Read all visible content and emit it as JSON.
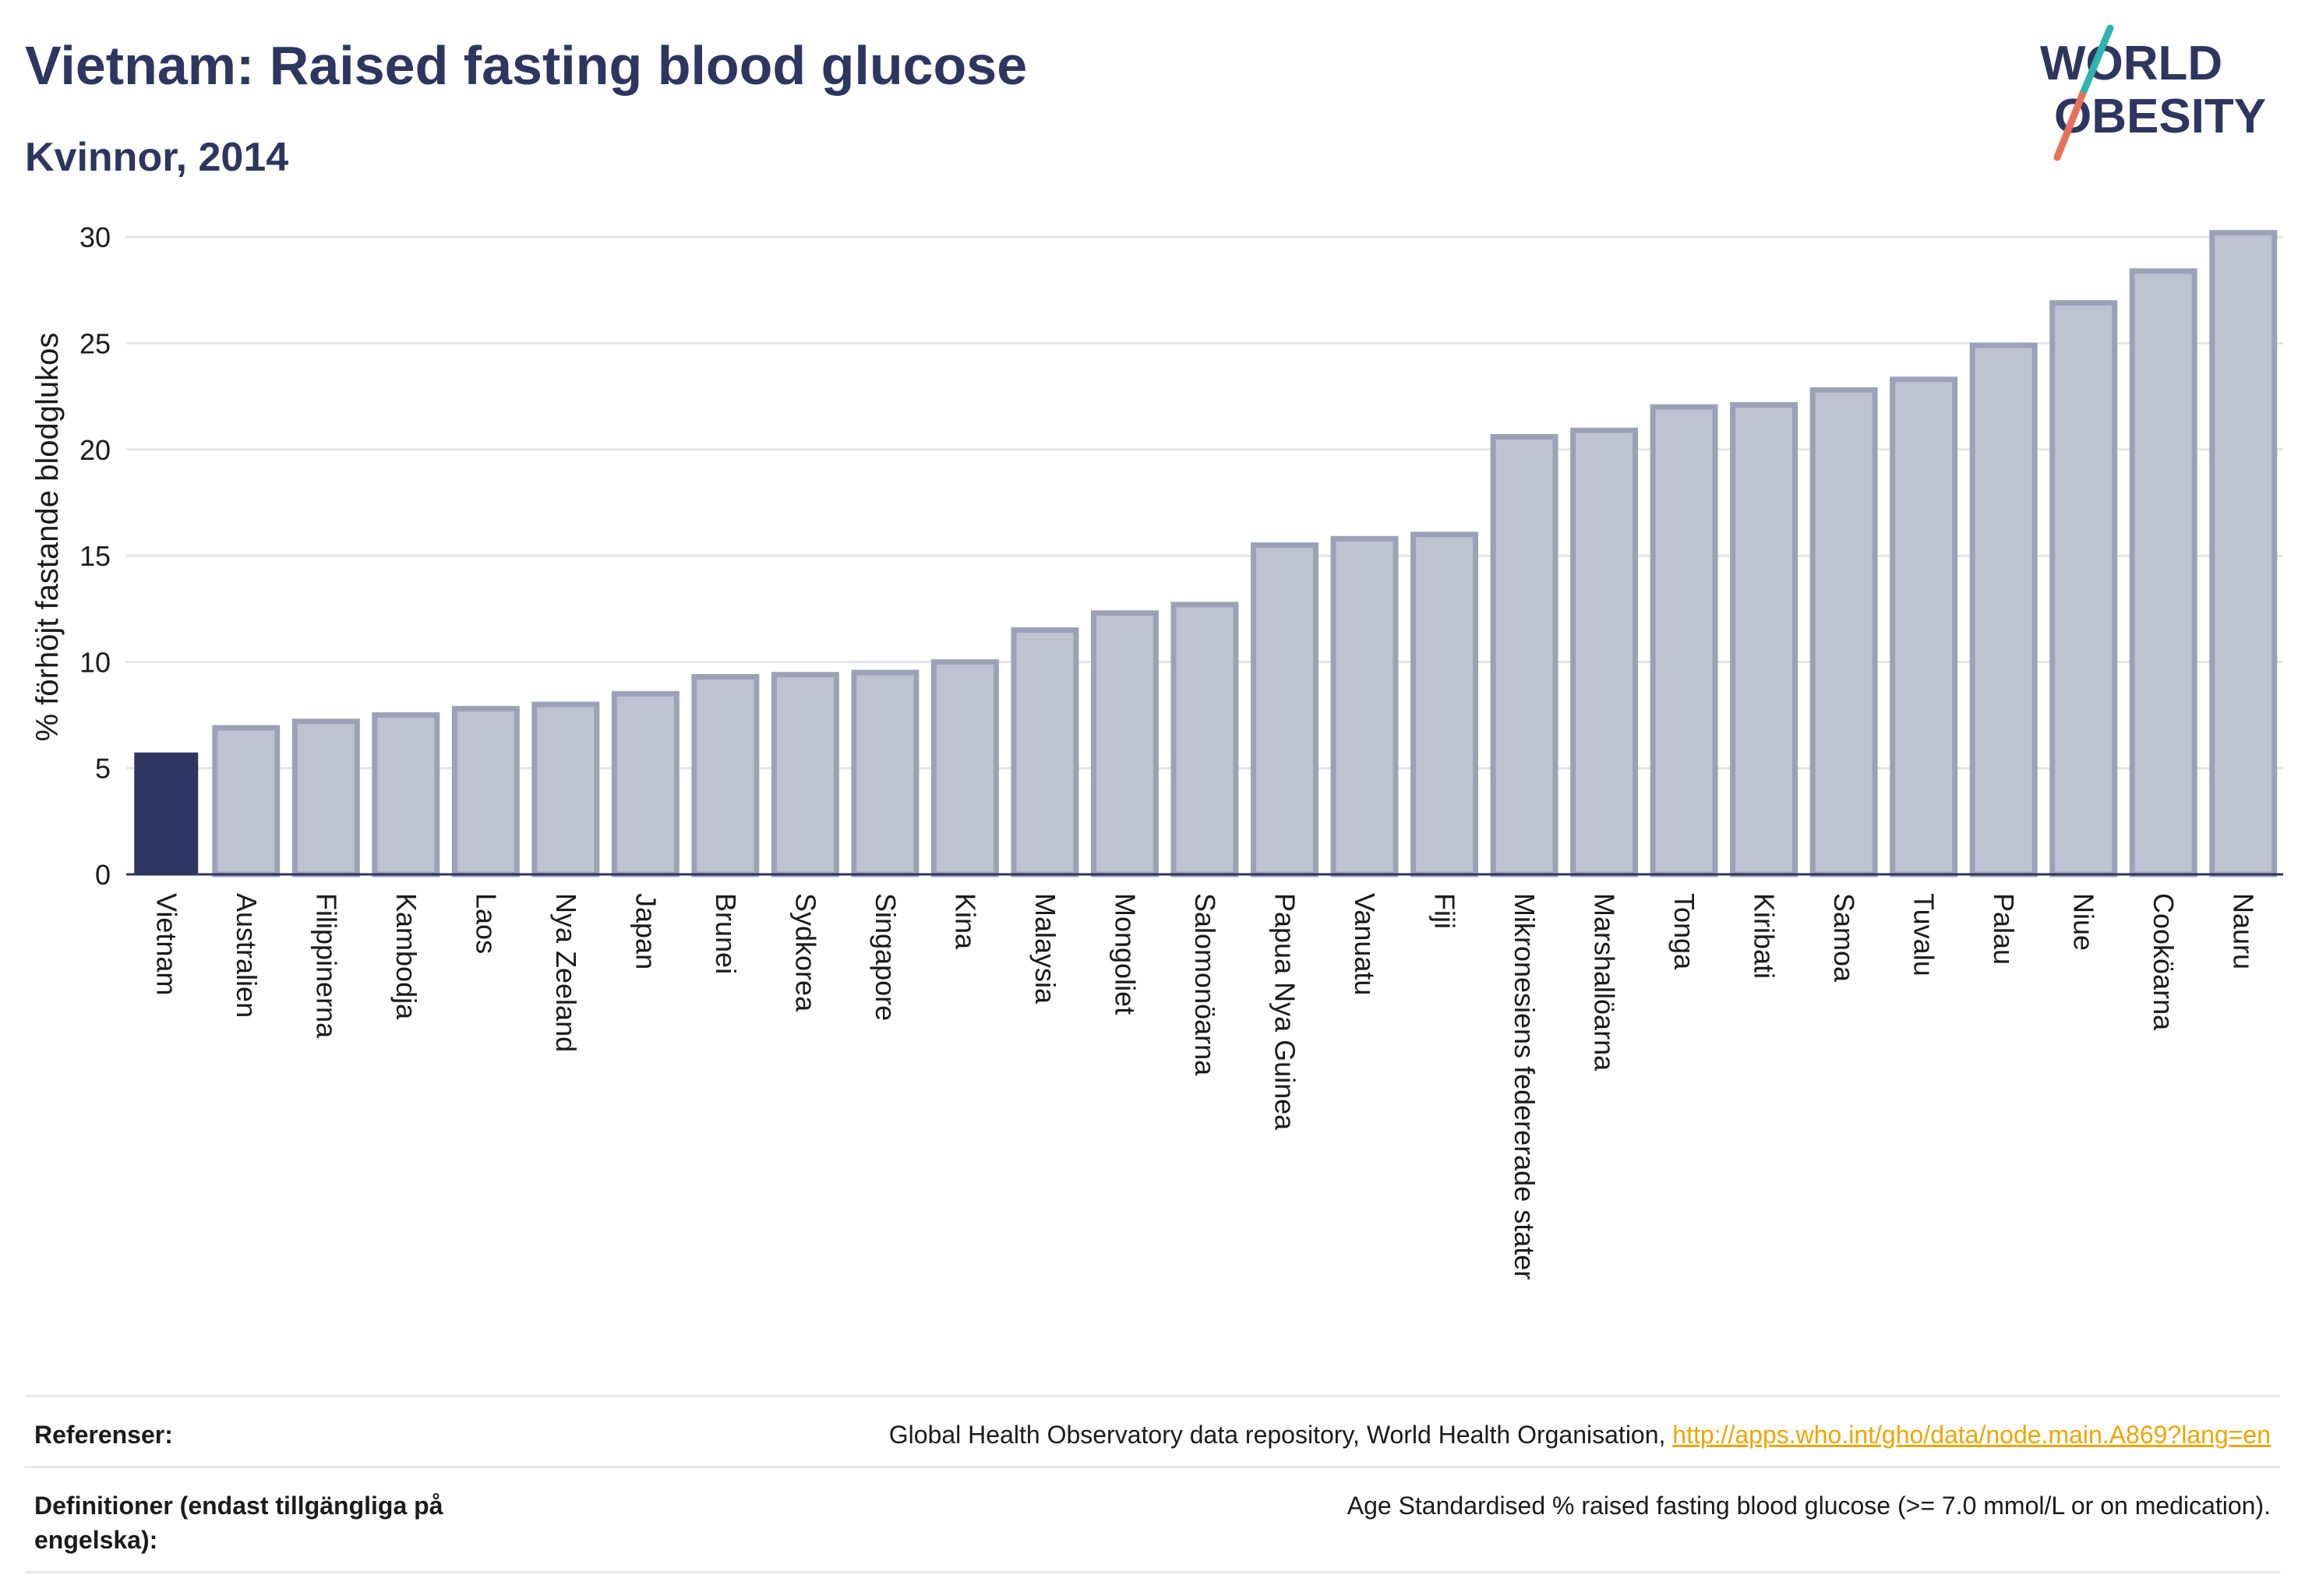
{
  "header": {
    "title": "Vietnam: Raised fasting blood glucose",
    "subtitle": "Kvinnor, 2014"
  },
  "logo": {
    "line1": "WORLD",
    "line2": "OBESITY"
  },
  "colors": {
    "highlight_bar": "#2d3660",
    "other_bar_fill": "#bfc2d0",
    "other_bar_stroke": "#9ca1b8",
    "title": "#2d3660",
    "link": "#f0a500",
    "logo_teal": "#2fb3b0",
    "logo_coral": "#e8705a"
  },
  "chart_data": {
    "type": "bar",
    "title": "",
    "xlabel": "",
    "ylabel": "% förhöjt fastande blodglukos",
    "ylim": [
      0,
      30
    ],
    "yticks": [
      0,
      5,
      10,
      15,
      20,
      25,
      30
    ],
    "grid": true,
    "highlight": "Vietnam",
    "categories": [
      "Vietnam",
      "Australien",
      "Filippinerna",
      "Kambodja",
      "Laos",
      "Nya Zeeland",
      "Japan",
      "Brunei",
      "Sydkorea",
      "Singapore",
      "Kina",
      "Malaysia",
      "Mongoliet",
      "Salomonöarna",
      "Papua Nya Guinea",
      "Vanuatu",
      "Fiji",
      "Mikronesiens federerade stater",
      "Marshallöarna",
      "Tonga",
      "Kiribati",
      "Samoa",
      "Tuvalu",
      "Palau",
      "Niue",
      "Cooköarna",
      "Nauru"
    ],
    "values": [
      5.7,
      6.9,
      7.2,
      7.5,
      7.8,
      8.0,
      8.5,
      9.3,
      9.4,
      9.5,
      10.0,
      11.5,
      12.3,
      12.7,
      15.5,
      15.8,
      16.0,
      20.6,
      20.9,
      22.0,
      22.1,
      22.8,
      23.3,
      24.9,
      26.9,
      28.4,
      30.2
    ]
  },
  "footer": {
    "references_label": "Referenser:",
    "references_text": "Global Health Observatory data repository, World Health Organisation, ",
    "references_link": "http://apps.who.int/gho/data/node.main.A869?lang=en",
    "definitions_label": "Definitioner (endast tillgängliga på engelska):",
    "definitions_text": "Age Standardised % raised fasting blood glucose (>= 7.0 mmol/L or on medication)."
  }
}
